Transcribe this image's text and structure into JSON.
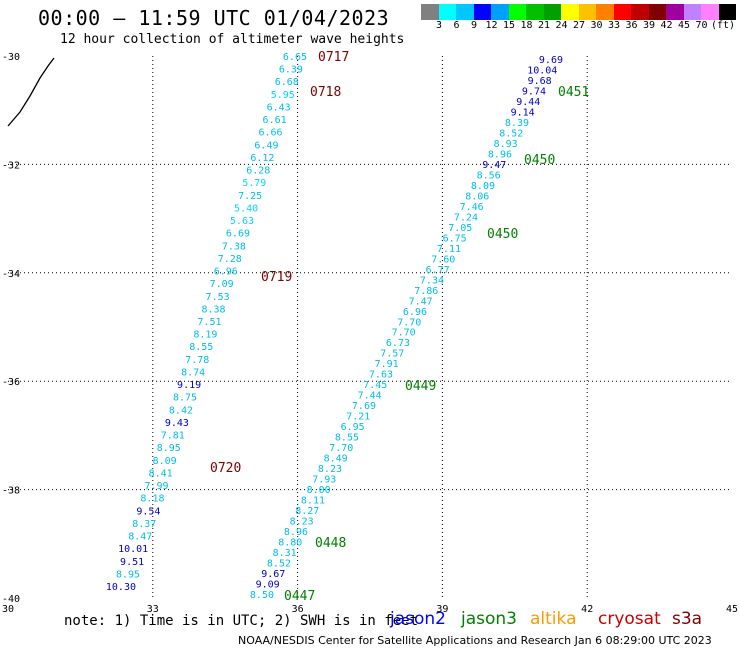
{
  "title": "00:00 – 11:59 UTC 01/04/2023",
  "subtitle": "12 hour collection of altimeter wave heights",
  "scale": {
    "unit": "(ft)",
    "colors": [
      "#808080",
      "#00ffff",
      "#00c8ff",
      "#0000ff",
      "#00a0ff",
      "#00ff00",
      "#00c000",
      "#00a000",
      "#ffff00",
      "#ffc000",
      "#ff8000",
      "#ff0000",
      "#c00000",
      "#800000",
      "#a000a0",
      "#c080ff",
      "#ff80ff",
      "#000000"
    ],
    "labels": [
      "3",
      "6",
      "9",
      "12",
      "15",
      "18",
      "21",
      "24",
      "27",
      "30",
      "33",
      "36",
      "39",
      "42",
      "45",
      "70"
    ]
  },
  "axes": {
    "lat_labels": [
      "-30",
      "-32",
      "-34",
      "-36",
      "-38",
      "-40"
    ],
    "lon_labels": [
      "30",
      "33",
      "36",
      "39",
      "42",
      "45"
    ]
  },
  "track_labels": [
    {
      "text": "0717",
      "color": "#800000"
    },
    {
      "text": "0718",
      "color": "#800000"
    },
    {
      "text": "0719",
      "color": "#800000"
    },
    {
      "text": "0720",
      "color": "#800000"
    },
    {
      "text": "0451",
      "color": "#008000"
    },
    {
      "text": "0450",
      "color": "#008000"
    },
    {
      "text": "0450",
      "color": "#008000"
    },
    {
      "text": "0449",
      "color": "#008000"
    },
    {
      "text": "0448",
      "color": "#008000"
    },
    {
      "text": "0447",
      "color": "#008000"
    }
  ],
  "track_west": [
    "6.65",
    "6.39",
    "6.68",
    "5.95",
    "6.43",
    "6.61",
    "6.66",
    "6.49",
    "6.12",
    "6.28",
    "5.79",
    "7.25",
    "5.40",
    "5.63",
    "6.69",
    "7.38",
    "7.28",
    "6.96",
    "7.09",
    "7.53",
    "8.38",
    "7.51",
    "8.19",
    "8.55",
    "7.78",
    "8.74",
    "9.19",
    "8.75",
    "8.42",
    "9.43",
    "7.81",
    "8.95",
    "8.09",
    "8.41",
    "7.99",
    "8.18",
    "9.54",
    "8.37",
    "8.47",
    "10.01",
    "9.51",
    "8.95",
    "10.30"
  ],
  "track_east": [
    "9.69",
    "10.04",
    "9.68",
    "9.74",
    "9.44",
    "9.14",
    "8.39",
    "8.52",
    "8.93",
    "8.96",
    "9.47",
    "8.56",
    "8.09",
    "8.06",
    "7.46",
    "7.24",
    "7.05",
    "6.75",
    "7.11",
    "7.60",
    "6.77",
    "7.34",
    "7.86",
    "7.47",
    "6.96",
    "7.70",
    "7.70",
    "6.73",
    "7.57",
    "7.91",
    "7.63",
    "7.45",
    "7.44",
    "7.69",
    "7.21",
    "6.95",
    "8.55",
    "7.70",
    "8.49",
    "8.23",
    "7.93",
    "8.00",
    "8.11",
    "8.27",
    "8.23",
    "8.96",
    "8.80",
    "8.31",
    "8.52",
    "9.67",
    "9.09",
    "8.50"
  ],
  "note": "note: 1) Time is in UTC; 2) SWH is in feet",
  "legend": [
    {
      "text": "jason2",
      "color": "#0000ff"
    },
    {
      "text": "jason3",
      "color": "#008000"
    },
    {
      "text": "altika",
      "color": "#ff9900"
    },
    {
      "text": "cryosat",
      "color": "#cc0000"
    },
    {
      "text": "s3a",
      "color": "#800000"
    }
  ],
  "footer": "NOAA/NESDIS Center for Satellite Applications and Research    Jan  6 08:29:00 UTC 2023"
}
